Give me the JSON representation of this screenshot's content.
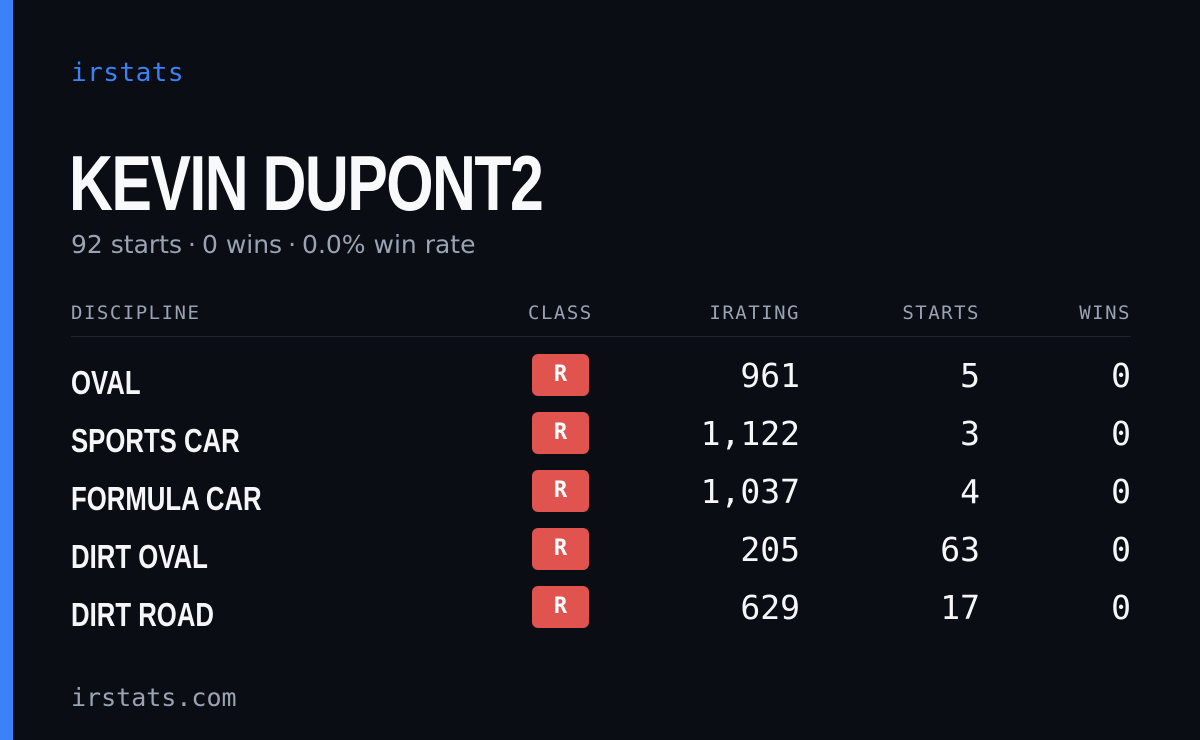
{
  "brand": "irstats",
  "driver": {
    "name": "KEVIN DUPONT2"
  },
  "summary": {
    "starts": "92 starts",
    "wins": "0 wins",
    "win_rate": "0.0% win rate",
    "separator": "·"
  },
  "table": {
    "headers": {
      "discipline": "DISCIPLINE",
      "class": "CLASS",
      "irating": "IRATING",
      "starts": "STARTS",
      "wins": "WINS"
    },
    "rows": [
      {
        "discipline": "OVAL",
        "class": "R",
        "irating": "961",
        "starts": "5",
        "wins": "0"
      },
      {
        "discipline": "SPORTS CAR",
        "class": "R",
        "irating": "1,122",
        "starts": "3",
        "wins": "0"
      },
      {
        "discipline": "FORMULA CAR",
        "class": "R",
        "irating": "1,037",
        "starts": "4",
        "wins": "0"
      },
      {
        "discipline": "DIRT OVAL",
        "class": "R",
        "irating": "205",
        "starts": "63",
        "wins": "0"
      },
      {
        "discipline": "DIRT ROAD",
        "class": "R",
        "irating": "629",
        "starts": "17",
        "wins": "0"
      }
    ]
  },
  "footer": {
    "site": "irstats.com"
  },
  "colors": {
    "background": "#0b0d14",
    "accent": "#3b82f6",
    "class_badge": "#e0534f",
    "muted_text": "#9aa3b2"
  }
}
